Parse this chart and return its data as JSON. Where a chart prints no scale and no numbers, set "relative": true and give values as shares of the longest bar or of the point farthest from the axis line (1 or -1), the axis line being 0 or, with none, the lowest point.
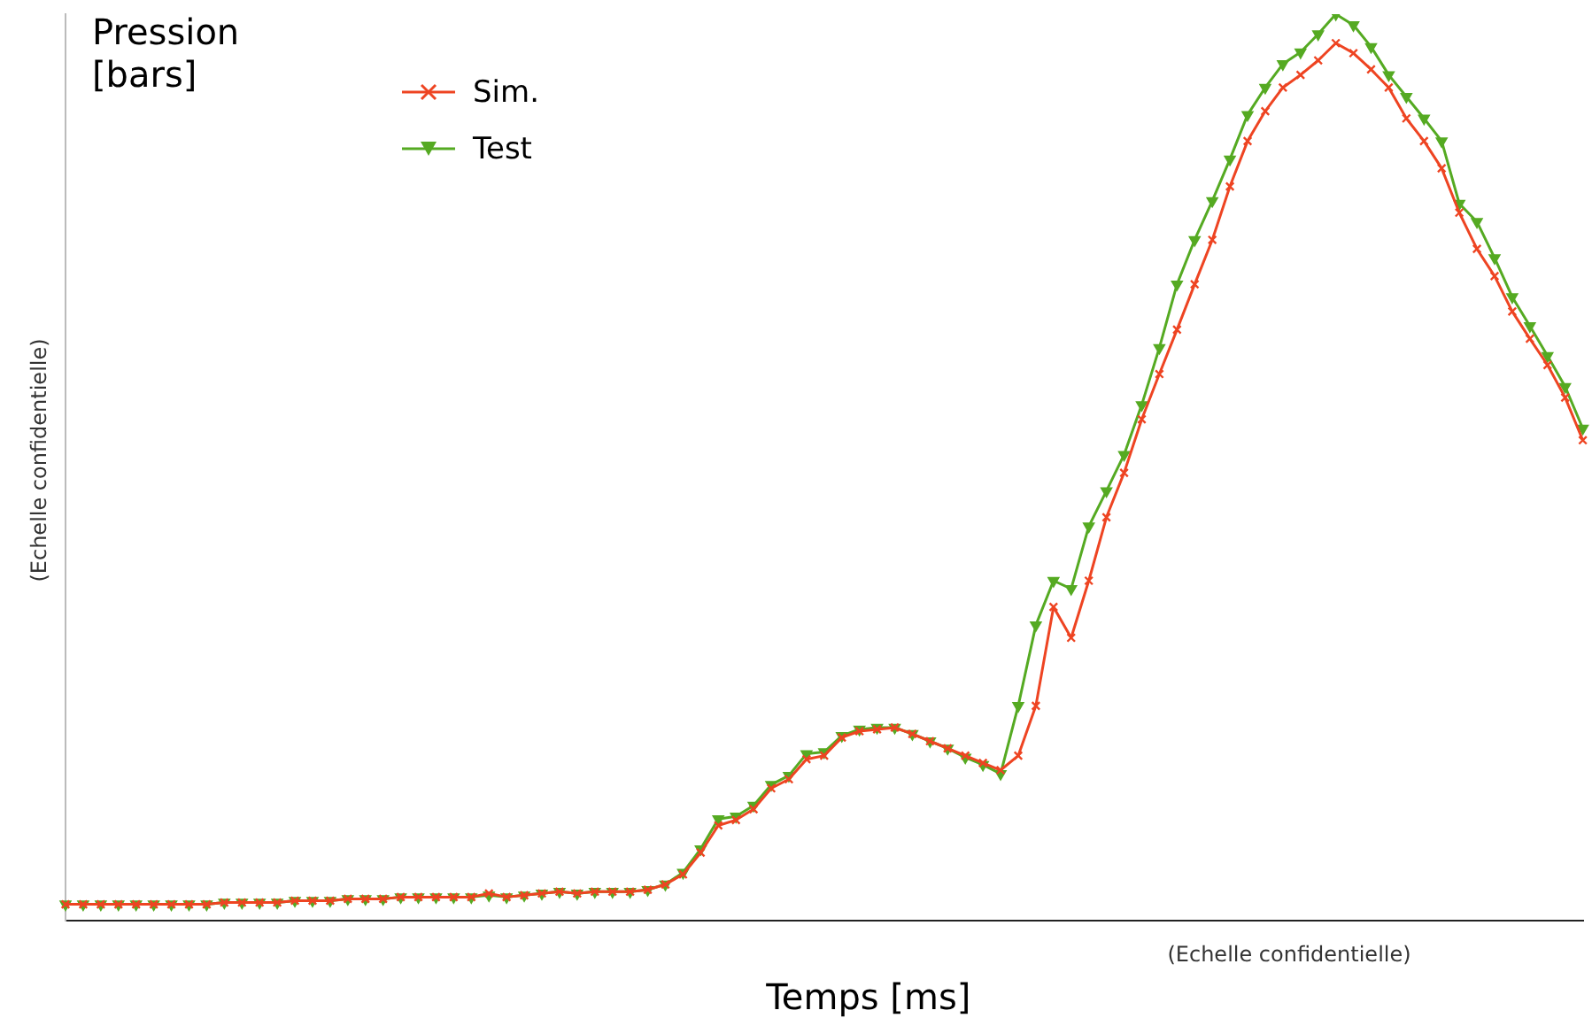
{
  "chart_data": {
    "type": "line",
    "relative": true,
    "xlabel": "Temps [ms]",
    "ylabel": "Pression\n[bars]",
    "annotations": [
      "(Echelle confidentielle)",
      "(Echelle confidentielle)"
    ],
    "legend": "top left",
    "grid": false,
    "line_style": "solid",
    "categories": [
      null,
      null,
      null,
      null,
      null,
      null,
      null,
      null,
      null,
      null,
      null,
      null,
      null,
      null,
      null,
      null,
      null,
      null,
      null,
      null,
      null,
      null,
      null,
      null,
      null,
      null,
      null,
      null,
      null,
      null,
      null,
      null,
      null,
      null,
      null,
      null,
      null,
      null,
      null,
      null,
      null,
      null,
      null,
      null,
      null,
      null,
      null,
      null,
      null,
      null,
      null,
      null,
      null,
      null,
      null,
      null,
      null,
      null,
      null,
      null,
      null,
      null,
      null,
      null,
      null,
      null,
      null,
      null,
      null,
      null,
      null,
      null,
      null,
      null,
      null,
      null,
      null,
      null,
      null,
      null,
      null,
      null,
      null,
      null,
      null,
      null,
      null
    ],
    "series": [
      {
        "name": "Sim.",
        "color": "#ee4422",
        "marker": "cross",
        "values": [
          0.018,
          0.018,
          0.018,
          0.018,
          0.018,
          0.018,
          0.018,
          0.018,
          0.018,
          0.02,
          0.02,
          0.02,
          0.02,
          0.022,
          0.022,
          0.022,
          0.024,
          0.024,
          0.024,
          0.026,
          0.026,
          0.026,
          0.026,
          0.026,
          0.03,
          0.026,
          0.028,
          0.03,
          0.032,
          0.03,
          0.032,
          0.032,
          0.032,
          0.034,
          0.04,
          0.051,
          0.075,
          0.105,
          0.111,
          0.123,
          0.146,
          0.156,
          0.178,
          0.182,
          0.202,
          0.209,
          0.211,
          0.213,
          0.206,
          0.198,
          0.19,
          0.182,
          0.174,
          0.166,
          0.182,
          0.237,
          0.346,
          0.312,
          0.375,
          0.445,
          0.494,
          0.553,
          0.603,
          0.652,
          0.702,
          0.751,
          0.81,
          0.86,
          0.893,
          0.919,
          0.933,
          0.949,
          0.968,
          0.957,
          0.939,
          0.919,
          0.885,
          0.86,
          0.83,
          0.781,
          0.741,
          0.711,
          0.672,
          0.642,
          0.613,
          0.577,
          0.53
        ]
      },
      {
        "name": "Test",
        "color": "#55aa22",
        "marker": "triangle",
        "values": [
          0.018,
          0.018,
          0.018,
          0.018,
          0.018,
          0.018,
          0.018,
          0.018,
          0.018,
          0.02,
          0.02,
          0.02,
          0.02,
          0.022,
          0.022,
          0.022,
          0.024,
          0.024,
          0.024,
          0.026,
          0.026,
          0.026,
          0.026,
          0.026,
          0.028,
          0.026,
          0.028,
          0.03,
          0.032,
          0.03,
          0.032,
          0.032,
          0.032,
          0.034,
          0.04,
          0.053,
          0.079,
          0.112,
          0.115,
          0.127,
          0.15,
          0.16,
          0.184,
          0.186,
          0.204,
          0.211,
          0.213,
          0.213,
          0.206,
          0.198,
          0.19,
          0.18,
          0.172,
          0.162,
          0.237,
          0.326,
          0.375,
          0.366,
          0.435,
          0.474,
          0.514,
          0.569,
          0.632,
          0.702,
          0.751,
          0.794,
          0.84,
          0.889,
          0.919,
          0.945,
          0.958,
          0.978,
          1,
          0.988,
          0.964,
          0.933,
          0.909,
          0.885,
          0.86,
          0.791,
          0.771,
          0.731,
          0.688,
          0.656,
          0.623,
          0.589,
          0.543
        ]
      }
    ]
  }
}
